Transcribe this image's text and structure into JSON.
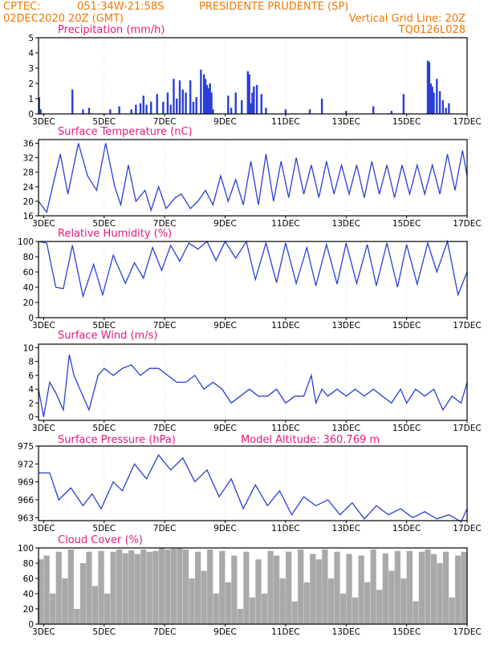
{
  "header": {
    "org": "CPTEC:",
    "coords": "051:34W-21:58S",
    "station": "PRESIDENTE PRUDENTE (SP)",
    "datetime": "02DEC2020 20Z (GMT)",
    "grid_note": "Vertical Grid Line: 20Z",
    "code": "TQ0126L028",
    "model_altitude": "Model Altitude: 360.769 m"
  },
  "x_ticks": [
    "3DEC",
    "5DEC",
    "7DEC",
    "9DEC",
    "11DEC",
    "13DEC",
    "15DEC",
    "17DEC"
  ],
  "x_range_days": [
    2.83,
    17.0
  ],
  "colors": {
    "line": "#2a3fd6",
    "bar": "#2a3fd6",
    "cloud": "#a9a9a9",
    "title": "#e8187a",
    "header": "#f07800"
  },
  "chart_data": [
    {
      "type": "bar",
      "title": "Precipitation (mm/h)",
      "ylim": [
        0,
        5
      ],
      "yticks": [
        0,
        1,
        2,
        3,
        4,
        5
      ],
      "x": [
        2.85,
        2.9,
        3.95,
        4.3,
        4.5,
        5.2,
        5.5,
        5.9,
        6.05,
        6.2,
        6.3,
        6.4,
        6.55,
        6.75,
        6.95,
        7.1,
        7.2,
        7.3,
        7.4,
        7.5,
        7.6,
        7.7,
        7.85,
        7.95,
        8.05,
        8.2,
        8.3,
        8.35,
        8.4,
        8.45,
        8.5,
        8.55,
        8.6,
        9.1,
        9.2,
        9.35,
        9.55,
        9.75,
        9.8,
        9.85,
        9.9,
        9.95,
        10.05,
        10.2,
        10.35,
        11.0,
        11.8,
        12.2,
        13.0,
        13.9,
        14.5,
        14.9,
        15.7,
        15.75,
        15.8,
        15.85,
        15.9,
        16.0,
        16.1,
        16.2,
        16.3,
        16.4
      ],
      "values": [
        1.1,
        0.3,
        1.6,
        0.3,
        0.4,
        0.3,
        0.5,
        0.3,
        0.6,
        0.7,
        1.2,
        0.6,
        0.8,
        1.3,
        0.8,
        1.4,
        0.6,
        2.3,
        1.0,
        2.2,
        1.6,
        1.4,
        2.2,
        0.8,
        1.1,
        2.9,
        2.6,
        2.3,
        1.9,
        1.7,
        2.0,
        1.4,
        0.3,
        1.2,
        0.4,
        1.4,
        0.9,
        2.8,
        2.6,
        0.7,
        1.4,
        1.8,
        1.9,
        1.3,
        0.4,
        0.3,
        0.3,
        1.0,
        0.2,
        0.5,
        0.2,
        1.3,
        3.5,
        3.4,
        2.0,
        1.8,
        1.4,
        2.3,
        1.5,
        0.9,
        0.4,
        0.7
      ]
    },
    {
      "type": "line",
      "title": "Surface Temperature (nC)",
      "ylim": [
        16,
        37
      ],
      "yticks": [
        16,
        20,
        24,
        28,
        32,
        36
      ],
      "x": [
        2.83,
        3.1,
        3.35,
        3.55,
        3.8,
        4.15,
        4.45,
        4.75,
        5.05,
        5.35,
        5.55,
        5.8,
        6.05,
        6.35,
        6.55,
        6.8,
        7.05,
        7.35,
        7.55,
        7.85,
        8.1,
        8.35,
        8.6,
        8.85,
        9.1,
        9.35,
        9.6,
        9.85,
        10.1,
        10.35,
        10.6,
        10.85,
        11.1,
        11.35,
        11.6,
        11.85,
        12.1,
        12.35,
        12.6,
        12.85,
        13.1,
        13.35,
        13.6,
        13.85,
        14.1,
        14.35,
        14.6,
        14.85,
        15.1,
        15.35,
        15.6,
        15.85,
        16.1,
        16.35,
        16.6,
        16.85,
        17.0
      ],
      "values": [
        20,
        17,
        26,
        33,
        22,
        36,
        27,
        23,
        36,
        24,
        19,
        30,
        20,
        23,
        17.5,
        24,
        18,
        21,
        22,
        18,
        20,
        23,
        19,
        27,
        20,
        26,
        19,
        31,
        19,
        33,
        20,
        31,
        21,
        32,
        22,
        30,
        21,
        31,
        22,
        30,
        22,
        30,
        21,
        31,
        22,
        30,
        21,
        30,
        22,
        30,
        22,
        30,
        22,
        33,
        23,
        34,
        27
      ]
    },
    {
      "type": "line",
      "title": "Relative Humidity (%)",
      "ylim": [
        0,
        100
      ],
      "yticks": [
        0,
        20,
        40,
        60,
        80,
        100
      ],
      "x": [
        2.83,
        3.1,
        3.4,
        3.65,
        3.95,
        4.3,
        4.65,
        4.95,
        5.3,
        5.7,
        6.0,
        6.3,
        6.6,
        6.9,
        7.2,
        7.5,
        7.8,
        8.1,
        8.4,
        8.7,
        9.0,
        9.35,
        9.7,
        10.0,
        10.35,
        10.7,
        11.0,
        11.35,
        11.7,
        12.0,
        12.35,
        12.7,
        13.0,
        13.35,
        13.7,
        14.0,
        14.35,
        14.7,
        15.0,
        15.35,
        15.7,
        16.0,
        16.35,
        16.7,
        17.0
      ],
      "values": [
        100,
        98,
        40,
        38,
        95,
        28,
        70,
        30,
        82,
        45,
        72,
        52,
        92,
        62,
        95,
        74,
        98,
        90,
        100,
        75,
        100,
        78,
        100,
        50,
        98,
        46,
        98,
        45,
        92,
        42,
        96,
        44,
        98,
        45,
        96,
        42,
        98,
        40,
        96,
        44,
        98,
        60,
        100,
        30,
        60
      ]
    },
    {
      "type": "line",
      "title": "Surface Wind (m/s)",
      "ylim": [
        -0.5,
        10.5
      ],
      "yticks": [
        0,
        2,
        4,
        6,
        8,
        10
      ],
      "x": [
        2.83,
        3.0,
        3.2,
        3.4,
        3.65,
        3.85,
        4.0,
        4.2,
        4.5,
        4.8,
        5.0,
        5.3,
        5.6,
        5.9,
        6.2,
        6.5,
        6.8,
        7.1,
        7.4,
        7.7,
        8.0,
        8.3,
        8.6,
        8.9,
        9.2,
        9.5,
        9.8,
        10.1,
        10.4,
        10.7,
        11.0,
        11.3,
        11.6,
        11.85,
        12.0,
        12.2,
        12.4,
        12.7,
        13.0,
        13.3,
        13.6,
        13.9,
        14.2,
        14.5,
        14.8,
        15.0,
        15.3,
        15.6,
        15.9,
        16.2,
        16.5,
        16.8,
        17.0
      ],
      "values": [
        4,
        0,
        5,
        3.5,
        1,
        9,
        6,
        4,
        1,
        6,
        7,
        6,
        7,
        7.5,
        6,
        7,
        7,
        6,
        5,
        5,
        6,
        4,
        5,
        4,
        2,
        3,
        4,
        3,
        3,
        4,
        2,
        3,
        3,
        6,
        2,
        4,
        3,
        4,
        3,
        4,
        3,
        4,
        3,
        2,
        4,
        2,
        4,
        3,
        4,
        1,
        3,
        2,
        5
      ]
    },
    {
      "type": "line",
      "title": "Surface Pressure (hPa)",
      "ylim": [
        962.5,
        975
      ],
      "yticks": [
        963,
        966,
        969,
        972,
        975
      ],
      "x": [
        2.83,
        3.2,
        3.5,
        3.9,
        4.3,
        4.6,
        4.9,
        5.3,
        5.6,
        6.0,
        6.4,
        6.8,
        7.2,
        7.6,
        8.0,
        8.4,
        8.8,
        9.2,
        9.6,
        10.0,
        10.4,
        10.8,
        11.2,
        11.6,
        12.0,
        12.4,
        12.8,
        13.2,
        13.6,
        14.0,
        14.4,
        14.8,
        15.2,
        15.6,
        16.0,
        16.4,
        16.8,
        17.0
      ],
      "values": [
        970.5,
        970.5,
        966,
        968,
        965,
        967,
        964.5,
        969,
        967.5,
        972,
        969.5,
        973.5,
        971,
        973,
        969,
        971,
        966.5,
        969.5,
        964.5,
        968.5,
        965,
        967.5,
        963.5,
        966.5,
        965,
        966,
        963.5,
        965.5,
        962.8,
        965,
        963.5,
        964.5,
        963,
        964,
        962.8,
        963.5,
        962.3,
        964.5
      ]
    },
    {
      "type": "bar",
      "title": "Cloud Cover (%)",
      "ylim": [
        0,
        100
      ],
      "yticks": [
        0,
        20,
        40,
        60,
        80,
        100
      ],
      "x": [
        2.9,
        3.1,
        3.3,
        3.5,
        3.7,
        3.9,
        4.1,
        4.3,
        4.5,
        4.7,
        4.9,
        5.1,
        5.3,
        5.5,
        5.7,
        5.9,
        6.1,
        6.3,
        6.5,
        6.7,
        6.9,
        7.1,
        7.3,
        7.5,
        7.7,
        7.9,
        8.1,
        8.3,
        8.5,
        8.7,
        8.9,
        9.1,
        9.3,
        9.5,
        9.7,
        9.9,
        10.1,
        10.3,
        10.5,
        10.7,
        10.9,
        11.1,
        11.3,
        11.5,
        11.7,
        11.9,
        12.1,
        12.3,
        12.5,
        12.7,
        12.9,
        13.1,
        13.3,
        13.5,
        13.7,
        13.9,
        14.1,
        14.3,
        14.5,
        14.7,
        14.9,
        15.1,
        15.3,
        15.5,
        15.7,
        15.9,
        16.1,
        16.3,
        16.5,
        16.7,
        16.9
      ],
      "values": [
        85,
        90,
        40,
        95,
        60,
        98,
        20,
        80,
        95,
        50,
        96,
        40,
        95,
        98,
        93,
        97,
        92,
        98,
        95,
        96,
        100,
        98,
        99,
        100,
        98,
        60,
        95,
        70,
        98,
        40,
        96,
        55,
        90,
        20,
        95,
        35,
        85,
        40,
        96,
        90,
        60,
        95,
        30,
        98,
        55,
        92,
        85,
        98,
        60,
        95,
        40,
        92,
        35,
        90,
        55,
        98,
        45,
        93,
        70,
        96,
        60,
        96,
        30,
        95,
        98,
        92,
        80,
        95,
        35,
        90,
        95
      ]
    }
  ]
}
